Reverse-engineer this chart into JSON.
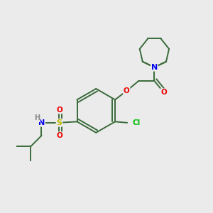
{
  "background_color": "#ebebeb",
  "bond_color": "#3a6a3a",
  "atom_colors": {
    "N": "#0000ee",
    "O": "#ee0000",
    "S": "#bbbb00",
    "Cl": "#00bb00",
    "H": "#888888",
    "C": "#3a6a3a"
  },
  "figsize": [
    3.0,
    3.0
  ],
  "dpi": 100
}
